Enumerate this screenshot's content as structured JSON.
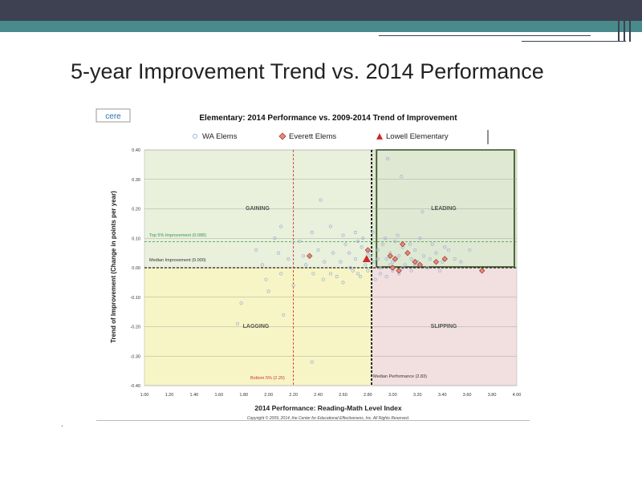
{
  "slide": {
    "title": "5-year Improvement Trend vs. 2014 Performance",
    "bullet_mark": "."
  },
  "colors": {
    "header_dark": "#3d4151",
    "header_teal": "#4a8a8c",
    "gaining": "#e9f0dc",
    "leading": "#dfe8d3",
    "lagging": "#f7f5c5",
    "slipping": "#f2dfdf",
    "wa_points": "#9fb4d6",
    "everett_points": "#e48a7a",
    "lowell_point": "#cc2a2a",
    "top5_line": "#2e9c4a",
    "bottom5_line": "#d0342c"
  },
  "chart_data": {
    "type": "scatter",
    "logo": "cere",
    "title": "Elementary:  2014 Performance vs. 2009-2014 Trend of Improvement",
    "xlabel": "2014 Performance: Reading-Math Level Index",
    "ylabel": "Trend of Improvement (Change in points per year)",
    "xlim": [
      1.0,
      4.0
    ],
    "ylim": [
      -0.4,
      0.4
    ],
    "x_ticks": [
      "1.00",
      "1.20",
      "1.40",
      "1.60",
      "1.80",
      "2.00",
      "2.20",
      "2.40",
      "2.60",
      "2.80",
      "3.00",
      "3.20",
      "3.40",
      "3.60",
      "3.80",
      "4.00"
    ],
    "y_ticks": [
      "0.40",
      "0.30",
      "0.20",
      "0.10",
      "0.00",
      "-0.10",
      "-0.20",
      "-0.30",
      "-0.40"
    ],
    "grid": true,
    "legend_position": "top",
    "copyright": "Copyright © 2009, 2014, the Center for Educational Effectiveness, Inc.  All Rights Reserved.",
    "quadrants": {
      "gaining": "GAINING",
      "leading": "LEADING",
      "lagging": "LAGGING",
      "slipping": "SLIPPING"
    },
    "reference_lines": {
      "top5": {
        "label": "Top 5% Improvement  (0.088)",
        "value": 0.088
      },
      "median_improvement": {
        "label": "Median Improvement  (0.000)",
        "value": 0.0
      },
      "bottom5": {
        "label": "Bottom 5% (2.20)",
        "value": 2.2
      },
      "median_performance": {
        "label": "Median Performance (2.83)",
        "value": 2.83
      }
    },
    "series": [
      {
        "name": "WA Elems",
        "marker": "circle",
        "points": [
          [
            2.42,
            0.23
          ],
          [
            2.96,
            0.37
          ],
          [
            3.07,
            0.31
          ],
          [
            3.24,
            0.19
          ],
          [
            3.62,
            0.06
          ],
          [
            2.1,
            0.14
          ],
          [
            1.78,
            -0.12
          ],
          [
            1.75,
            -0.19
          ],
          [
            2.12,
            -0.16
          ],
          [
            2.35,
            -0.32
          ],
          [
            2.72,
            -0.02
          ],
          [
            1.9,
            0.06
          ],
          [
            2.05,
            0.1
          ],
          [
            2.25,
            0.09
          ],
          [
            2.35,
            0.12
          ],
          [
            2.5,
            0.14
          ],
          [
            2.6,
            0.11
          ],
          [
            2.65,
            0.05
          ],
          [
            2.7,
            0.03
          ],
          [
            2.75,
            0.07
          ],
          [
            2.78,
            0.01
          ],
          [
            2.8,
            -0.01
          ],
          [
            2.82,
            0.04
          ],
          [
            2.85,
            0.02
          ],
          [
            2.88,
            0.06
          ],
          [
            2.9,
            0.0
          ],
          [
            2.92,
            0.08
          ],
          [
            2.95,
            0.03
          ],
          [
            2.98,
            0.05
          ],
          [
            3.0,
            0.02
          ],
          [
            3.02,
            0.09
          ],
          [
            3.05,
            0.04
          ],
          [
            3.08,
            0.07
          ],
          [
            3.1,
            0.01
          ],
          [
            3.12,
            0.05
          ],
          [
            3.15,
            0.03
          ],
          [
            3.18,
            0.06
          ],
          [
            3.2,
            0.02
          ],
          [
            3.25,
            0.04
          ],
          [
            3.3,
            0.03
          ],
          [
            3.35,
            0.05
          ],
          [
            3.4,
            0.02
          ],
          [
            3.45,
            0.06
          ],
          [
            3.5,
            0.03
          ],
          [
            3.55,
            0.02
          ],
          [
            2.55,
            -0.03
          ],
          [
            2.6,
            -0.05
          ],
          [
            2.68,
            -0.01
          ],
          [
            2.72,
            0.09
          ],
          [
            2.86,
            -0.04
          ],
          [
            2.9,
            -0.02
          ],
          [
            2.95,
            -0.03
          ],
          [
            3.0,
            -0.01
          ],
          [
            3.05,
            -0.02
          ],
          [
            3.15,
            -0.01
          ],
          [
            2.45,
            0.02
          ],
          [
            2.5,
            -0.02
          ],
          [
            2.3,
            0.01
          ],
          [
            2.2,
            -0.06
          ],
          [
            2.0,
            -0.08
          ],
          [
            1.95,
            0.01
          ],
          [
            2.1,
            -0.02
          ],
          [
            2.4,
            0.06
          ],
          [
            2.62,
            0.08
          ],
          [
            2.7,
            0.12
          ],
          [
            2.76,
            0.1
          ],
          [
            2.84,
            0.12
          ],
          [
            2.94,
            0.1
          ],
          [
            3.04,
            0.11
          ],
          [
            3.14,
            0.08
          ],
          [
            3.22,
            0.1
          ],
          [
            3.32,
            0.08
          ],
          [
            3.42,
            0.07
          ],
          [
            2.58,
            0.02
          ],
          [
            2.66,
            0.0
          ],
          [
            2.74,
            -0.03
          ],
          [
            2.8,
            0.05
          ],
          [
            2.88,
            0.03
          ],
          [
            2.98,
            0.01
          ],
          [
            3.08,
            0.0
          ],
          [
            3.18,
            0.01
          ],
          [
            3.28,
            0.0
          ],
          [
            3.38,
            -0.01
          ],
          [
            2.52,
            0.05
          ],
          [
            2.44,
            -0.04
          ],
          [
            2.36,
            -0.02
          ],
          [
            2.28,
            0.04
          ],
          [
            2.16,
            0.03
          ],
          [
            2.08,
            0.05
          ],
          [
            1.98,
            -0.04
          ]
        ]
      },
      {
        "name": "Everett  Elems",
        "marker": "diamond",
        "points": [
          [
            2.33,
            0.04
          ],
          [
            2.8,
            0.06
          ],
          [
            3.0,
            0.0
          ],
          [
            3.02,
            0.03
          ],
          [
            3.08,
            0.08
          ],
          [
            3.12,
            0.05
          ],
          [
            3.18,
            0.02
          ],
          [
            3.22,
            0.01
          ],
          [
            3.35,
            0.02
          ],
          [
            3.42,
            0.03
          ],
          [
            3.72,
            -0.01
          ],
          [
            3.05,
            -0.01
          ],
          [
            2.98,
            0.04
          ]
        ]
      },
      {
        "name": "Lowell Elementary",
        "marker": "triangle",
        "points": [
          [
            2.79,
            0.03
          ]
        ]
      }
    ]
  }
}
